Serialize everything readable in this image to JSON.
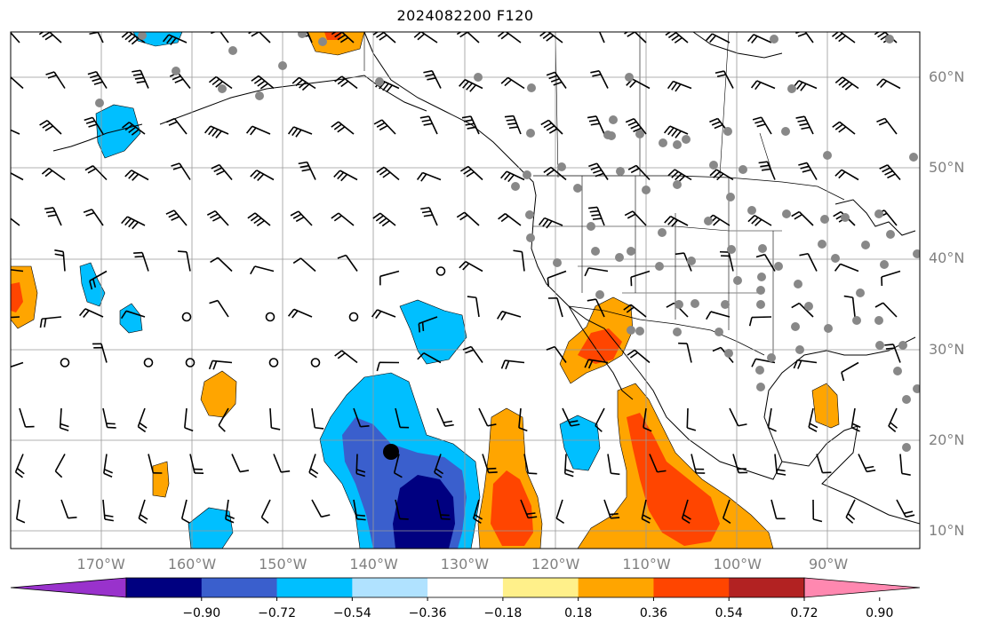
{
  "title": "2024082200 F120",
  "lat_labels": [
    {
      "lat": 60,
      "text": "60°N"
    },
    {
      "lat": 50,
      "text": "50°N"
    },
    {
      "lat": 40,
      "text": "40°N"
    },
    {
      "lat": 30,
      "text": "30°N"
    },
    {
      "lat": 20,
      "text": "20°N"
    },
    {
      "lat": 10,
      "text": "10°N"
    }
  ],
  "lon_labels": [
    {
      "lon": -170,
      "text": "170°W"
    },
    {
      "lon": -160,
      "text": "160°W"
    },
    {
      "lon": -150,
      "text": "150°W"
    },
    {
      "lon": -140,
      "text": "140°W"
    },
    {
      "lon": -130,
      "text": "130°W"
    },
    {
      "lon": -120,
      "text": "120°W"
    },
    {
      "lon": -110,
      "text": "110°W"
    },
    {
      "lon": -100,
      "text": "100°W"
    },
    {
      "lon": -90,
      "text": "90°W"
    }
  ],
  "colorbar": {
    "colors": [
      "#9932cc",
      "#000080",
      "#3a5fcd",
      "#00bfff",
      "#b0e2ff",
      "#ffffff",
      "#fff08a",
      "#ffa500",
      "#ff4500",
      "#b22222",
      "#ff88b0"
    ],
    "labels": [
      "−0.90",
      "−0.72",
      "−0.54",
      "−0.36",
      "−0.18",
      "0.18",
      "0.36",
      "0.54",
      "0.72",
      "0.90"
    ]
  },
  "colors": {
    "grid": "#999999",
    "coast": "#000000",
    "station_marker": "#888888",
    "storm_marker": "#000000"
  }
}
